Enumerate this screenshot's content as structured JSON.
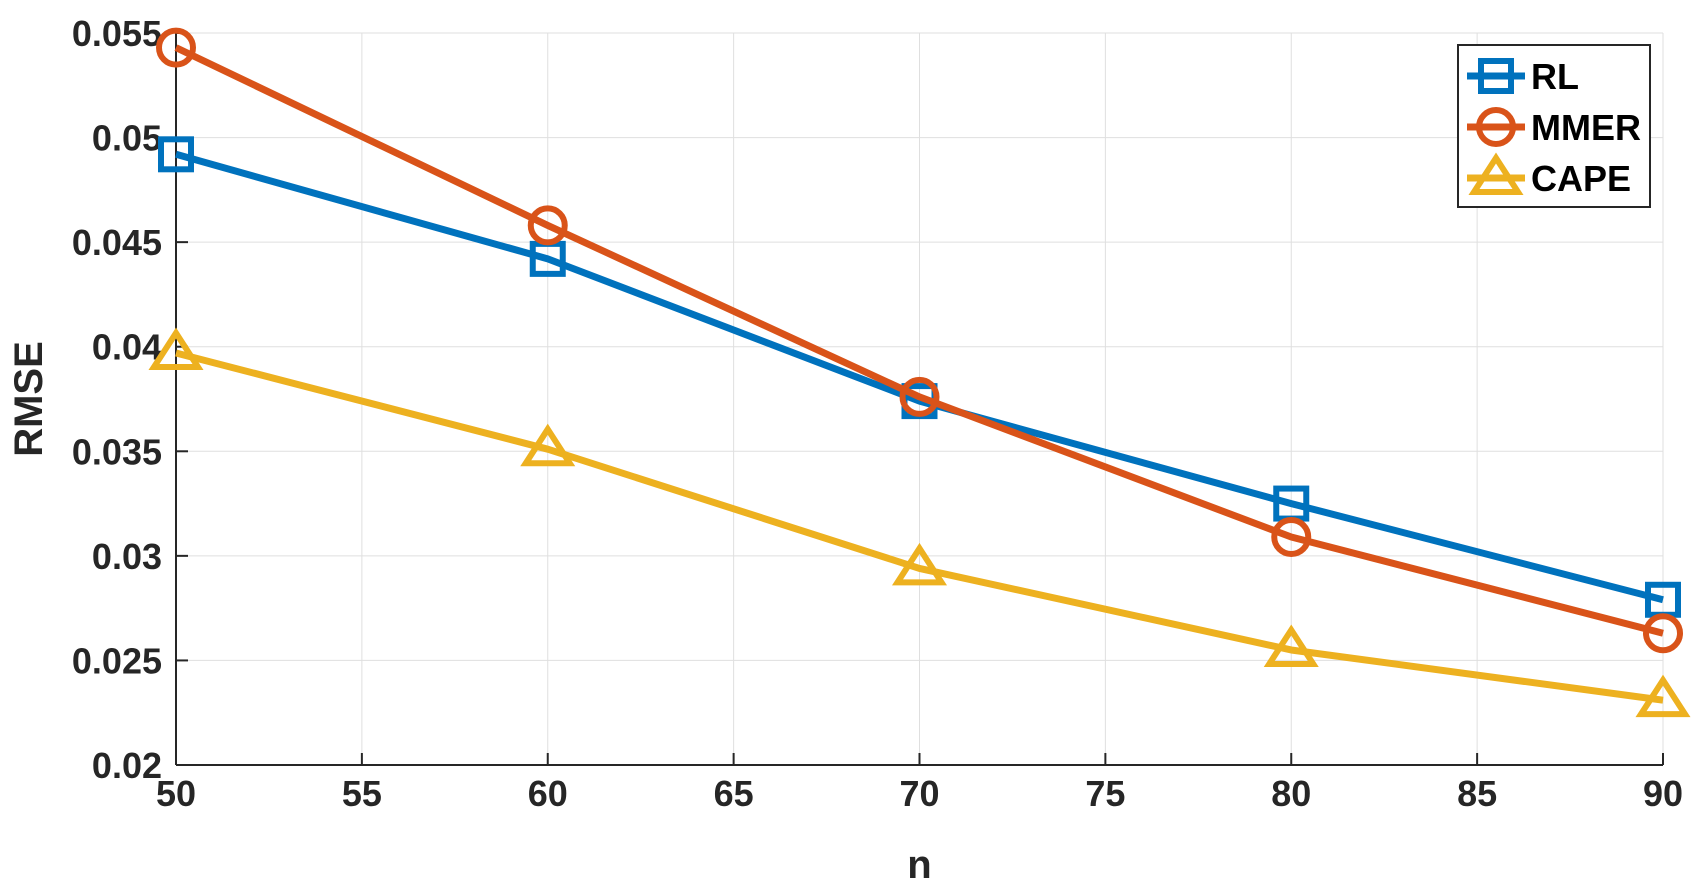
{
  "chart_data": {
    "type": "line",
    "title": "",
    "xlabel": "n",
    "ylabel": "RMSE",
    "xlim": [
      50,
      90
    ],
    "ylim": [
      0.02,
      0.055
    ],
    "xticks": [
      "50",
      "55",
      "60",
      "65",
      "70",
      "75",
      "80",
      "85",
      "90"
    ],
    "yticks": [
      "0.02",
      "0.025",
      "0.03",
      "0.035",
      "0.04",
      "0.045",
      "0.05",
      "0.055"
    ],
    "grid": true,
    "legend_position": "top-right",
    "x": [
      50,
      60,
      70,
      80,
      90
    ],
    "series": [
      {
        "name": "RL",
        "values": [
          0.0492,
          0.0442,
          0.0374,
          0.0325,
          0.0279
        ],
        "color": "#0072BD",
        "marker": "square"
      },
      {
        "name": "MMER",
        "values": [
          0.0543,
          0.0458,
          0.0376,
          0.0309,
          0.0263
        ],
        "color": "#D95319",
        "marker": "circle"
      },
      {
        "name": "CAPE",
        "values": [
          0.0397,
          0.0351,
          0.0294,
          0.0255,
          0.0231
        ],
        "color": "#EDB120",
        "marker": "triangle"
      }
    ]
  }
}
